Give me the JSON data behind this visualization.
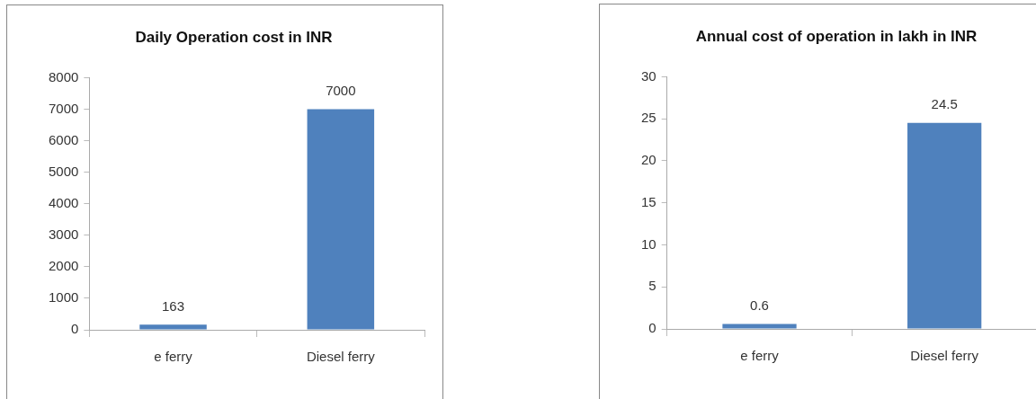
{
  "chart_data": [
    {
      "type": "bar",
      "title": "Daily Operation cost in INR",
      "categories": [
        "e ferry",
        "Diesel ferry"
      ],
      "values": [
        163,
        7000
      ],
      "color": "#4f81bd",
      "ylim": [
        0,
        8000
      ],
      "yticks": [
        0,
        1000,
        2000,
        3000,
        4000,
        5000,
        6000,
        7000,
        8000
      ],
      "grid": false,
      "legend": false,
      "data_labels": true
    },
    {
      "type": "bar",
      "title": "Annual cost of operation in lakh in INR",
      "categories": [
        "e ferry",
        "Diesel ferry"
      ],
      "values": [
        0.6,
        24.5
      ],
      "color": "#4f81bd",
      "ylim": [
        0,
        30
      ],
      "yticks": [
        0,
        5,
        10,
        15,
        20,
        25,
        30
      ],
      "grid": false,
      "legend": false,
      "data_labels": true
    }
  ]
}
